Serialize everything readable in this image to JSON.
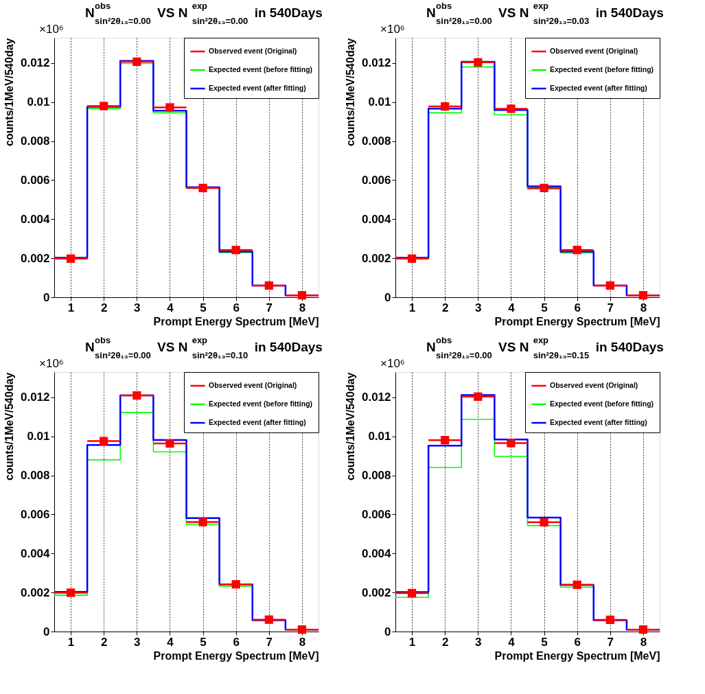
{
  "chart_data": [
    {
      "type": "histogram",
      "title": "N$^{obs}$$_{sin²2θ₁₃=0.00}$ VS N$^{exp}$$_{sin²2θ₁₃=0.00}$ in 540Days",
      "xlabel": "Prompt Energy Spectrum [MeV]",
      "ylabel": "counts/1MeV/540day",
      "annotations": [
        "×10⁶"
      ],
      "bins": [
        0.5,
        1.5,
        2.5,
        3.5,
        4.5,
        5.5,
        6.5,
        7.5,
        8.5
      ],
      "xlim": [
        0.5,
        8.5
      ],
      "xticks": [
        1,
        2,
        3,
        4,
        5,
        6,
        7,
        8
      ],
      "ylim": [
        0,
        0.0133
      ],
      "yticks": [
        0,
        0.002,
        0.004,
        0.006,
        0.008,
        0.01,
        0.012
      ],
      "grid": "x",
      "legend": "top right",
      "series": [
        {
          "name": "Observed event (Original)",
          "color": "#ff0000",
          "type": "scatter",
          "marker": "square",
          "x": [
            1,
            2,
            3,
            4,
            5,
            6,
            7,
            8
          ],
          "values": [
            0.00198,
            0.0098,
            0.01207,
            0.00973,
            0.0056,
            0.00242,
            0.0006,
            0.0001
          ],
          "xerrors": [
            0.5,
            0.5,
            0.5,
            0.5,
            0.5,
            0.5,
            0.5,
            0.5
          ]
        },
        {
          "name": "Expected event (before fitting)",
          "color": "#00ff00",
          "values": [
            0.00196,
            0.00967,
            0.01198,
            0.00945,
            0.00558,
            0.00229,
            0.0006,
            0.0001
          ]
        },
        {
          "name": "Expected event (after fitting)",
          "color": "#0000ff",
          "values": [
            0.00202,
            0.00976,
            0.01211,
            0.00956,
            0.00564,
            0.00234,
            0.0006,
            0.0001
          ]
        }
      ]
    },
    {
      "type": "histogram",
      "title": "N$^{obs}$$_{sin²2θ₁₃=0.00}$ VS N$^{exp}$$_{sin²2θ₁₃=0.03}$ in 540Days",
      "xlabel": "Prompt Energy Spectrum [MeV]",
      "ylabel": "counts/1MeV/540day",
      "annotations": [
        "×10⁶"
      ],
      "bins": [
        0.5,
        1.5,
        2.5,
        3.5,
        4.5,
        5.5,
        6.5,
        7.5,
        8.5
      ],
      "xlim": [
        0.5,
        8.5
      ],
      "xticks": [
        1,
        2,
        3,
        4,
        5,
        6,
        7,
        8
      ],
      "ylim": [
        0,
        0.0133
      ],
      "yticks": [
        0,
        0.002,
        0.004,
        0.006,
        0.008,
        0.01,
        0.012
      ],
      "grid": "x",
      "legend": "top right",
      "series": [
        {
          "name": "Observed event (Original)",
          "color": "#ff0000",
          "type": "scatter",
          "marker": "square",
          "x": [
            1,
            2,
            3,
            4,
            5,
            6,
            7,
            8
          ],
          "values": [
            0.00198,
            0.00978,
            0.01204,
            0.00966,
            0.0056,
            0.00242,
            0.0006,
            0.0001
          ],
          "xerrors": [
            0.5,
            0.5,
            0.5,
            0.5,
            0.5,
            0.5,
            0.5,
            0.5
          ]
        },
        {
          "name": "Expected event (before fitting)",
          "color": "#00ff00",
          "values": [
            0.00196,
            0.00945,
            0.0118,
            0.00935,
            0.00554,
            0.00227,
            0.00059,
            0.0001
          ]
        },
        {
          "name": "Expected event (after fitting)",
          "color": "#0000ff",
          "values": [
            0.00202,
            0.00967,
            0.01207,
            0.0096,
            0.00568,
            0.00234,
            0.0006,
            0.0001
          ]
        }
      ]
    },
    {
      "type": "histogram",
      "title": "N$^{obs}$$_{sin²2θ₁₃=0.00}$ VS N$^{exp}$$_{sin²2θ₁₃=0.10}$ in 540Days",
      "xlabel": "Prompt Energy Spectrum [MeV]",
      "ylabel": "counts/1MeV/540day",
      "annotations": [
        "×10⁶"
      ],
      "bins": [
        0.5,
        1.5,
        2.5,
        3.5,
        4.5,
        5.5,
        6.5,
        7.5,
        8.5
      ],
      "xlim": [
        0.5,
        8.5
      ],
      "xticks": [
        1,
        2,
        3,
        4,
        5,
        6,
        7,
        8
      ],
      "ylim": [
        0,
        0.0133
      ],
      "yticks": [
        0,
        0.002,
        0.004,
        0.006,
        0.008,
        0.01,
        0.012
      ],
      "grid": "x",
      "legend": "top right",
      "series": [
        {
          "name": "Observed event (Original)",
          "color": "#ff0000",
          "type": "scatter",
          "marker": "square",
          "x": [
            1,
            2,
            3,
            4,
            5,
            6,
            7,
            8
          ],
          "values": [
            0.00199,
            0.00976,
            0.0121,
            0.00964,
            0.00561,
            0.00242,
            0.00061,
            0.0001
          ],
          "xerrors": [
            0.5,
            0.5,
            0.5,
            0.5,
            0.5,
            0.5,
            0.5,
            0.5
          ]
        },
        {
          "name": "Expected event (before fitting)",
          "color": "#00ff00",
          "values": [
            0.00186,
            0.0088,
            0.01123,
            0.00921,
            0.0055,
            0.00232,
            0.00058,
            0.0001
          ]
        },
        {
          "name": "Expected event (after fitting)",
          "color": "#0000ff",
          "values": [
            0.00203,
            0.00956,
            0.0121,
            0.00982,
            0.00581,
            0.00242,
            0.00058,
            0.0001
          ]
        }
      ]
    },
    {
      "type": "histogram",
      "title": "N$^{obs}$$_{sin²2θ₁₃=0.00}$ VS N$^{exp}$$_{sin²2θ₁₃=0.15}$ in 540Days",
      "xlabel": "Prompt Energy Spectrum [MeV]",
      "ylabel": "counts/1MeV/540day",
      "annotations": [
        "×10⁶"
      ],
      "bins": [
        0.5,
        1.5,
        2.5,
        3.5,
        4.5,
        5.5,
        6.5,
        7.5,
        8.5
      ],
      "xlim": [
        0.5,
        8.5
      ],
      "xticks": [
        1,
        2,
        3,
        4,
        5,
        6,
        7,
        8
      ],
      "ylim": [
        0,
        0.0133
      ],
      "yticks": [
        0,
        0.002,
        0.004,
        0.006,
        0.008,
        0.01,
        0.012
      ],
      "grid": "x",
      "legend": "top right",
      "series": [
        {
          "name": "Observed event (Original)",
          "color": "#ff0000",
          "type": "scatter",
          "marker": "square",
          "x": [
            1,
            2,
            3,
            4,
            5,
            6,
            7,
            8
          ],
          "values": [
            0.00197,
            0.00981,
            0.01204,
            0.00966,
            0.0056,
            0.0024,
            0.0006,
            0.0001
          ],
          "xerrors": [
            0.5,
            0.5,
            0.5,
            0.5,
            0.5,
            0.5,
            0.5,
            0.5
          ]
        },
        {
          "name": "Expected event (before fitting)",
          "color": "#00ff00",
          "values": [
            0.00175,
            0.00841,
            0.01087,
            0.00898,
            0.00543,
            0.00227,
            0.00058,
            0.0001
          ]
        },
        {
          "name": "Expected event (after fitting)",
          "color": "#0000ff",
          "values": [
            0.00202,
            0.00953,
            0.01212,
            0.00984,
            0.00584,
            0.00238,
            0.00058,
            0.0001
          ]
        }
      ]
    }
  ]
}
